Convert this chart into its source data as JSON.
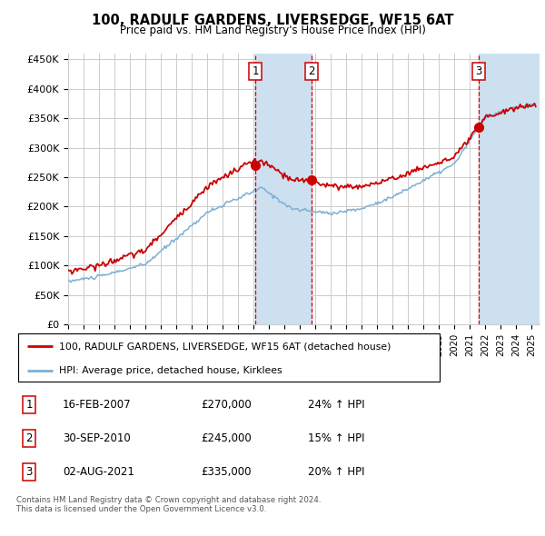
{
  "title": "100, RADULF GARDENS, LIVERSEDGE, WF15 6AT",
  "subtitle": "Price paid vs. HM Land Registry's House Price Index (HPI)",
  "ylabel_ticks": [
    "£0",
    "£50K",
    "£100K",
    "£150K",
    "£200K",
    "£250K",
    "£300K",
    "£350K",
    "£400K",
    "£450K"
  ],
  "ytick_vals": [
    0,
    50000,
    100000,
    150000,
    200000,
    250000,
    300000,
    350000,
    400000,
    450000
  ],
  "ylim": [
    0,
    460000
  ],
  "xlim_start": 1995.0,
  "xlim_end": 2025.5,
  "sale_dates": [
    2007.12,
    2010.75,
    2021.58
  ],
  "sale_prices": [
    270000,
    245000,
    335000
  ],
  "sale_labels": [
    "1",
    "2",
    "3"
  ],
  "legend_line1": "100, RADULF GARDENS, LIVERSEDGE, WF15 6AT (detached house)",
  "legend_line2": "HPI: Average price, detached house, Kirklees",
  "table_rows": [
    {
      "num": "1",
      "date": "16-FEB-2007",
      "price": "£270,000",
      "change": "24% ↑ HPI"
    },
    {
      "num": "2",
      "date": "30-SEP-2010",
      "price": "£245,000",
      "change": "15% ↑ HPI"
    },
    {
      "num": "3",
      "date": "02-AUG-2021",
      "price": "£335,000",
      "change": "20% ↑ HPI"
    }
  ],
  "footer": "Contains HM Land Registry data © Crown copyright and database right 2024.\nThis data is licensed under the Open Government Licence v3.0.",
  "red_color": "#cc0000",
  "blue_color": "#7ab0d4",
  "span_color": "#cce0f0",
  "grid_color": "#cccccc",
  "background_color": "#ffffff"
}
